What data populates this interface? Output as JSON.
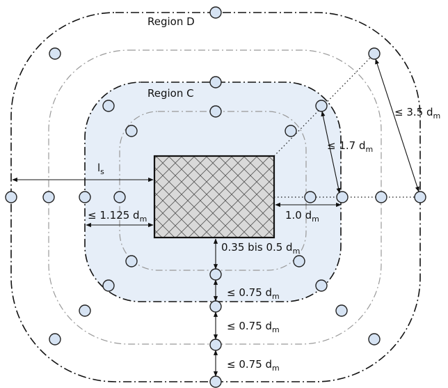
{
  "regions": {
    "outer": "Region D",
    "inner": "Region C"
  },
  "dimensions": {
    "ls": "l",
    "ls_sub": "s",
    "edge_125": "≤ 1.125 d",
    "edge_125_sub": "m",
    "first_row": "0.35 bis 0.5 d",
    "first_row_sub": "m",
    "row_spacing_1": "≤ 0.75 d",
    "row_spacing_1_sub": "m",
    "row_spacing_2": "≤ 0.75 d",
    "row_spacing_2_sub": "m",
    "row_spacing_3": "≤ 0.75 d",
    "row_spacing_3_sub": "m",
    "tangential_inner": "≤ 1.7 d",
    "tangential_inner_sub": "m",
    "tangential_outer": "≤ 3.5 d",
    "tangential_outer_sub": "m",
    "radial_1": "1.0 d",
    "radial_1_sub": "m"
  },
  "colors": {
    "region_c_fill": "#e6eef8",
    "stud_fill": "#d6e3f3",
    "column_fill": "#d9d9d9"
  }
}
